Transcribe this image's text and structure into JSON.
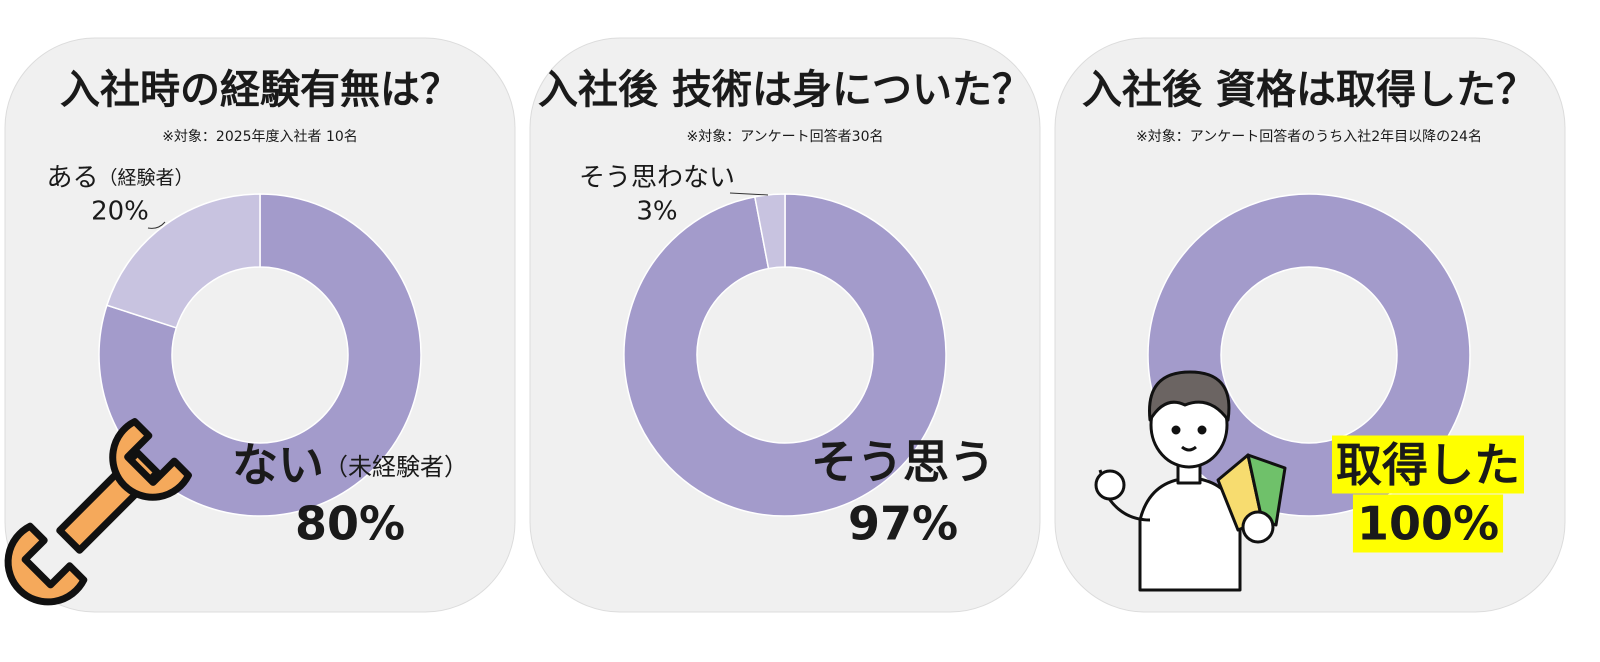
{
  "chart_data": [
    {
      "type": "pie",
      "title": "入社時の経験有無は？",
      "subtitle": "※対象：2025年度入社者  10名",
      "categories": [
        "ない",
        "ある"
      ],
      "category_notes": [
        "（未経験者）",
        "（経験者）"
      ],
      "values": [
        80,
        20
      ],
      "value_labels": [
        "80%",
        "20%"
      ],
      "colors": [
        "#a39bcb",
        "#c8c3e0"
      ]
    },
    {
      "type": "pie",
      "title": "入社後 技術は身についた？",
      "subtitle": "※対象：アンケート回答者30名",
      "categories": [
        "そう思う",
        "そう思わない"
      ],
      "values": [
        97,
        3
      ],
      "value_labels": [
        "97%",
        "3%"
      ],
      "colors": [
        "#a39bcb",
        "#c8c3e0"
      ]
    },
    {
      "type": "pie",
      "title": "入社後 資格は取得した？",
      "subtitle": "※対象：アンケート回答者のうち入社2年目以降の24名",
      "categories": [
        "取得した"
      ],
      "values": [
        100
      ],
      "value_labels": [
        "100%"
      ],
      "colors": [
        "#a39bcb"
      ],
      "highlight": "#ffff00"
    }
  ]
}
